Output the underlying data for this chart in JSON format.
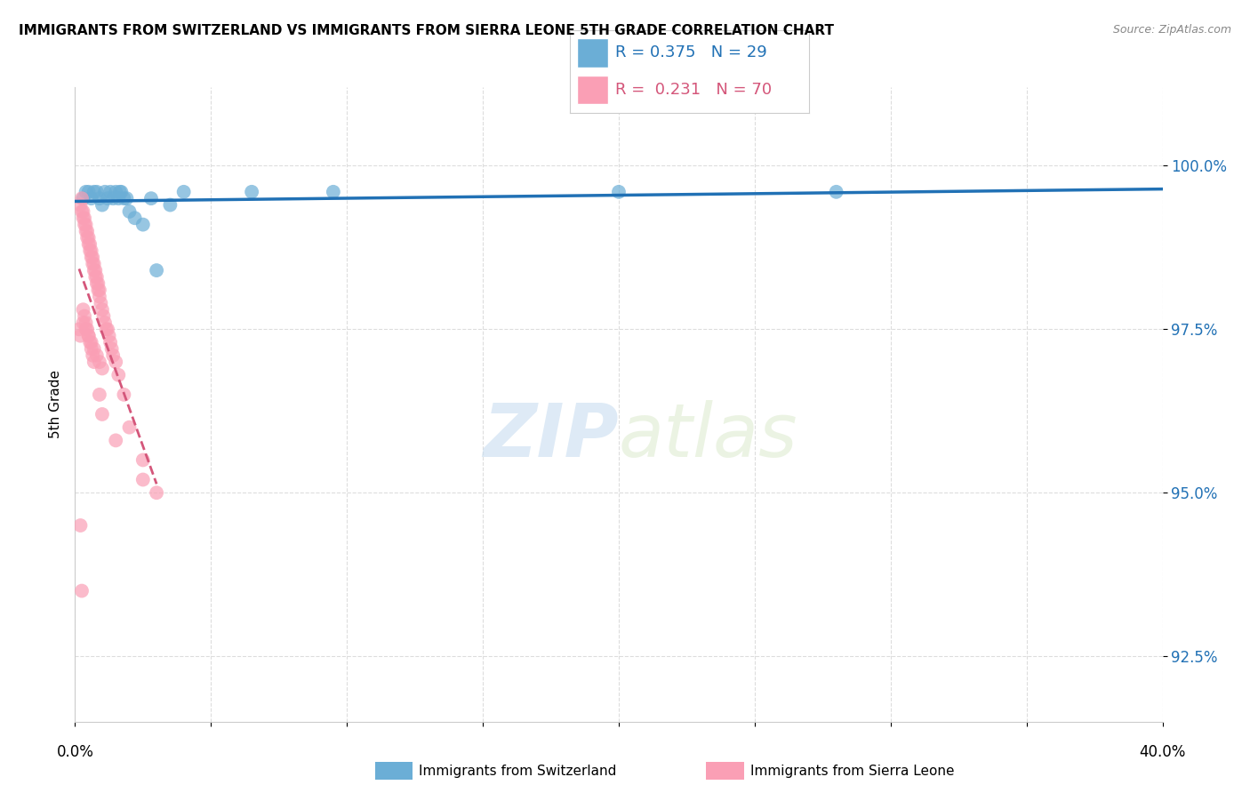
{
  "title": "IMMIGRANTS FROM SWITZERLAND VS IMMIGRANTS FROM SIERRA LEONE 5TH GRADE CORRELATION CHART",
  "source": "Source: ZipAtlas.com",
  "ylabel": "5th Grade",
  "yticks": [
    92.5,
    95.0,
    97.5,
    100.0
  ],
  "ytick_labels": [
    "92.5%",
    "95.0%",
    "97.5%",
    "100.0%"
  ],
  "xlim": [
    0.0,
    40.0
  ],
  "ylim": [
    91.5,
    101.2
  ],
  "watermark_zip": "ZIP",
  "watermark_atlas": "atlas",
  "legend_blue_R": "0.375",
  "legend_blue_N": "29",
  "legend_pink_R": "0.231",
  "legend_pink_N": "70",
  "legend_blue_label": "Immigrants from Switzerland",
  "legend_pink_label": "Immigrants from Sierra Leone",
  "blue_color": "#6baed6",
  "pink_color": "#fa9fb5",
  "trendline_blue_color": "#2171b5",
  "trendline_pink_color": "#d4567a",
  "grid_color": "#dddddd",
  "background_color": "#ffffff",
  "blue_x": [
    0.3,
    0.5,
    0.6,
    0.7,
    0.8,
    0.9,
    1.0,
    1.1,
    1.2,
    1.3,
    1.4,
    1.5,
    1.6,
    1.65,
    1.7,
    1.8,
    1.9,
    2.0,
    2.2,
    2.5,
    2.8,
    3.0,
    3.5,
    4.0,
    6.5,
    9.5,
    20.0,
    28.0,
    0.4
  ],
  "blue_y": [
    99.5,
    99.6,
    99.5,
    99.6,
    99.6,
    99.5,
    99.4,
    99.6,
    99.5,
    99.6,
    99.5,
    99.6,
    99.5,
    99.6,
    99.6,
    99.5,
    99.5,
    99.3,
    99.2,
    99.1,
    99.5,
    98.4,
    99.4,
    99.6,
    99.6,
    99.6,
    99.6,
    99.6,
    99.6
  ],
  "pink_x": [
    0.15,
    0.2,
    0.25,
    0.3,
    0.3,
    0.35,
    0.4,
    0.4,
    0.45,
    0.5,
    0.5,
    0.55,
    0.6,
    0.6,
    0.65,
    0.7,
    0.7,
    0.75,
    0.8,
    0.8,
    0.85,
    0.9,
    0.9,
    0.95,
    1.0,
    1.0,
    1.05,
    1.1,
    1.15,
    1.2,
    1.25,
    1.3,
    1.35,
    1.4,
    1.5,
    1.6,
    1.8,
    2.0,
    2.5,
    3.0,
    0.2,
    0.25,
    0.3,
    0.35,
    0.4,
    0.45,
    0.5,
    0.55,
    0.6,
    0.65,
    0.7,
    0.75,
    0.8,
    0.85,
    0.9,
    0.3,
    0.35,
    0.4,
    0.45,
    0.5,
    0.55,
    0.6,
    0.65,
    0.7,
    0.2,
    0.25,
    0.9,
    1.0,
    1.5,
    2.5
  ],
  "pink_y": [
    97.5,
    97.4,
    99.3,
    99.2,
    97.6,
    99.1,
    99.0,
    97.5,
    98.9,
    98.8,
    97.4,
    98.7,
    98.6,
    97.3,
    98.5,
    98.4,
    97.2,
    98.3,
    98.2,
    97.1,
    98.1,
    98.0,
    97.0,
    97.9,
    97.8,
    96.9,
    97.7,
    97.6,
    97.5,
    97.5,
    97.4,
    97.3,
    97.2,
    97.1,
    97.0,
    96.8,
    96.5,
    96.0,
    95.5,
    95.0,
    99.4,
    99.5,
    99.3,
    99.2,
    99.1,
    99.0,
    98.9,
    98.8,
    98.7,
    98.6,
    98.5,
    98.4,
    98.3,
    98.2,
    98.1,
    97.8,
    97.7,
    97.6,
    97.5,
    97.4,
    97.3,
    97.2,
    97.1,
    97.0,
    94.5,
    93.5,
    96.5,
    96.2,
    95.8,
    95.2
  ]
}
